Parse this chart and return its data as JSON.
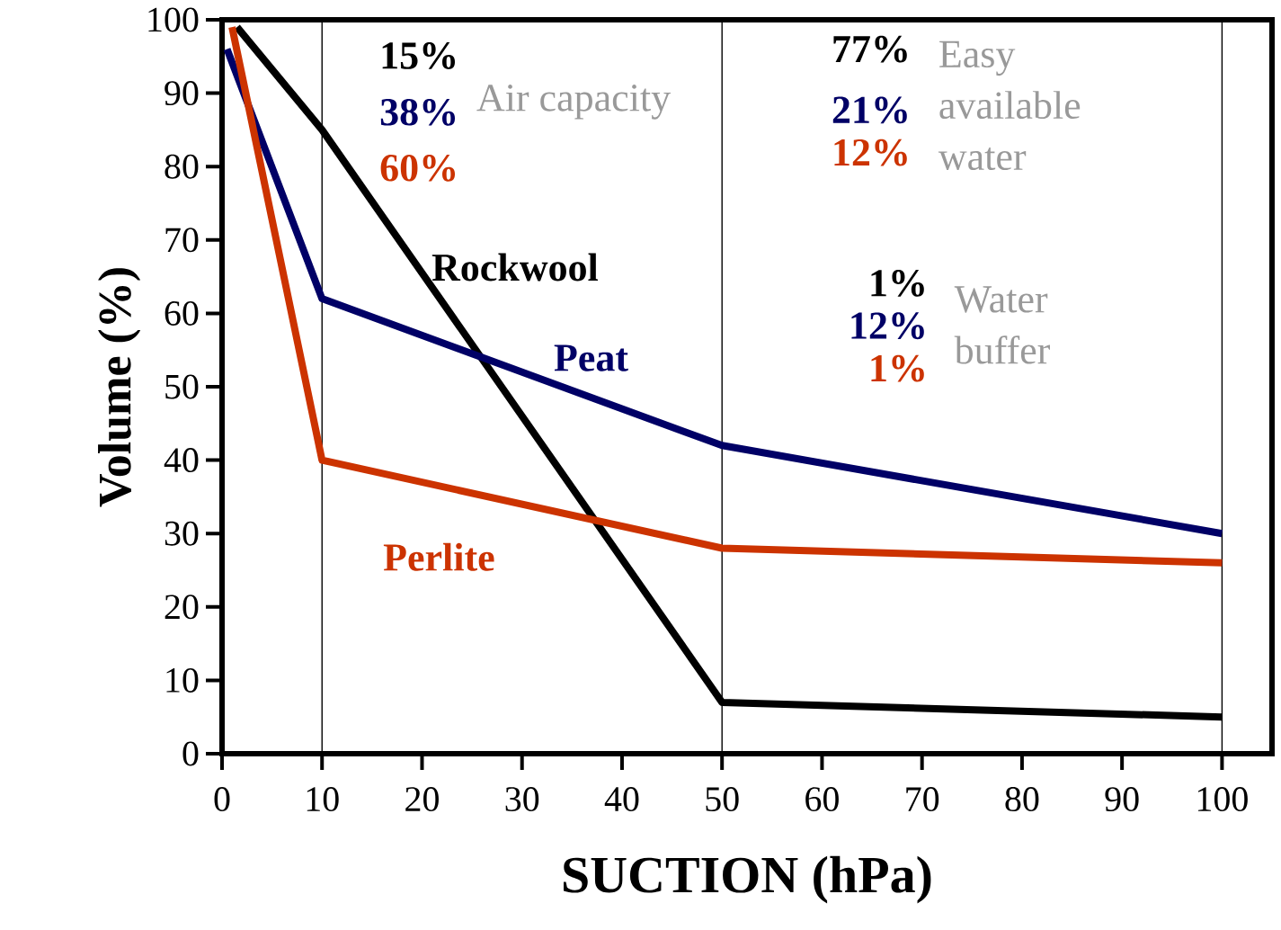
{
  "chart_data": {
    "type": "line",
    "xlabel": "SUCTION (hPa)",
    "ylabel": "Volume (%)",
    "xlim": [
      0,
      105
    ],
    "ylim": [
      0,
      100
    ],
    "xticks": [
      0,
      10,
      20,
      30,
      40,
      50,
      60,
      70,
      80,
      90,
      100
    ],
    "yticks": [
      0,
      10,
      20,
      30,
      40,
      50,
      60,
      70,
      80,
      90,
      100
    ],
    "series": [
      {
        "name": "Rockwool",
        "color": "#000000",
        "x": [
          1.5,
          10,
          50,
          100
        ],
        "values": [
          99,
          85,
          7,
          5
        ]
      },
      {
        "name": "Peat",
        "color": "#000066",
        "x": [
          0.5,
          10,
          50,
          100
        ],
        "values": [
          96,
          62,
          42,
          30
        ]
      },
      {
        "name": "Perlite",
        "color": "#cc3300",
        "x": [
          1,
          10,
          50,
          100
        ],
        "values": [
          99,
          40,
          28,
          26
        ]
      }
    ],
    "ref_lines": [
      {
        "axis": "x",
        "value": 10,
        "color": "#000000"
      },
      {
        "axis": "x",
        "value": 50,
        "color": "#000000"
      },
      {
        "axis": "x",
        "value": 100,
        "color": "#000000"
      }
    ],
    "annotations": [
      "15%",
      "38%",
      "60%",
      "Air capacity",
      "77%",
      "21%",
      "12%",
      "Easy available water",
      "1%",
      "12%",
      "1%",
      "Water buffer"
    ],
    "grid": false,
    "legend": false,
    "marker": "none",
    "line_style": "solid"
  }
}
